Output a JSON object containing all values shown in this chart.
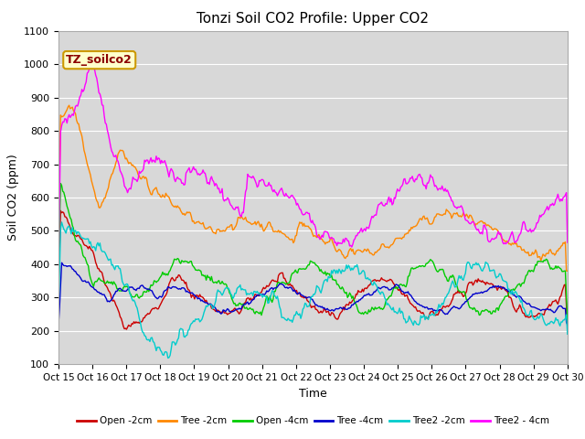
{
  "title": "Tonzi Soil CO2 Profile: Upper CO2",
  "xlabel": "Time",
  "ylabel": "Soil CO2 (ppm)",
  "ylim": [
    100,
    1100
  ],
  "yticks": [
    100,
    200,
    300,
    400,
    500,
    600,
    700,
    800,
    900,
    1000,
    1100
  ],
  "xtick_labels": [
    "Oct 15",
    "Oct 16",
    "Oct 17",
    "Oct 18",
    "Oct 19",
    "Oct 20",
    "Oct 21",
    "Oct 22",
    "Oct 23",
    "Oct 24",
    "Oct 25",
    "Oct 26",
    "Oct 27",
    "Oct 28",
    "Oct 29",
    "Oct 30"
  ],
  "watermark": "TZ_soilco2",
  "plot_bg_color": "#d8d8d8",
  "grid_color": "#ffffff",
  "legend_entries": [
    "Open -2cm",
    "Tree -2cm",
    "Open -4cm",
    "Tree -4cm",
    "Tree2 -2cm",
    "Tree2 - 4cm"
  ],
  "line_colors": [
    "#cc0000",
    "#ff8800",
    "#00cc00",
    "#0000cc",
    "#00cccc",
    "#ff00ff"
  ],
  "line_width": 1.0,
  "title_fontsize": 11,
  "watermark_color": "#8b0000",
  "watermark_bg": "#ffffcc",
  "watermark_border": "#cc9900"
}
